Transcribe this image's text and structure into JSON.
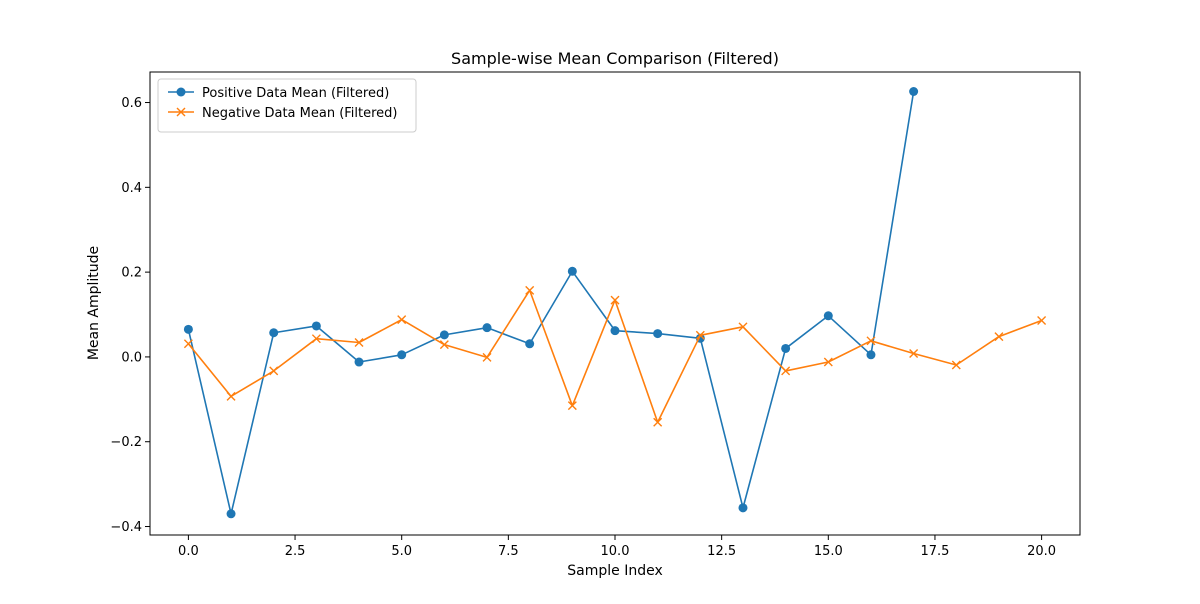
{
  "chart_data": {
    "type": "line",
    "title": "Sample-wise Mean Comparison (Filtered)",
    "xlabel": "Sample Index",
    "ylabel": "Mean Amplitude",
    "xlim": [
      -0.9,
      20.9
    ],
    "ylim": [
      -0.42,
      0.672
    ],
    "x_ticks": [
      0.0,
      2.5,
      5.0,
      7.5,
      10.0,
      12.5,
      15.0,
      17.5,
      20.0
    ],
    "x_tick_labels": [
      "0.0",
      "2.5",
      "5.0",
      "7.5",
      "10.0",
      "12.5",
      "15.0",
      "17.5",
      "20.0"
    ],
    "y_ticks": [
      -0.4,
      -0.2,
      0.0,
      0.2,
      0.4,
      0.6
    ],
    "y_tick_labels": [
      "−0.4",
      "−0.2",
      "0.0",
      "0.2",
      "0.4",
      "0.6"
    ],
    "grid": false,
    "legend_position": "upper-left",
    "series": [
      {
        "name": "Positive Data Mean (Filtered)",
        "color": "#1f77b4",
        "marker": "circle",
        "x": [
          0,
          1,
          2,
          3,
          4,
          5,
          6,
          7,
          8,
          9,
          10,
          11,
          12,
          13,
          14,
          15,
          16,
          17
        ],
        "values": [
          0.065,
          -0.37,
          0.057,
          0.073,
          -0.012,
          0.005,
          0.052,
          0.069,
          0.031,
          0.202,
          0.062,
          0.055,
          0.044,
          -0.356,
          0.02,
          0.097,
          0.005,
          0.626
        ]
      },
      {
        "name": "Negative Data Mean (Filtered)",
        "color": "#ff7f0e",
        "marker": "x",
        "x": [
          0,
          1,
          2,
          3,
          4,
          5,
          6,
          7,
          8,
          9,
          10,
          11,
          12,
          13,
          14,
          15,
          16,
          17,
          18,
          19,
          20
        ],
        "values": [
          0.031,
          -0.093,
          -0.033,
          0.043,
          0.034,
          0.088,
          0.029,
          -0.001,
          0.157,
          -0.115,
          0.134,
          -0.154,
          0.051,
          0.071,
          -0.033,
          -0.012,
          0.038,
          0.008,
          -0.019,
          0.048,
          0.086
        ]
      }
    ]
  }
}
